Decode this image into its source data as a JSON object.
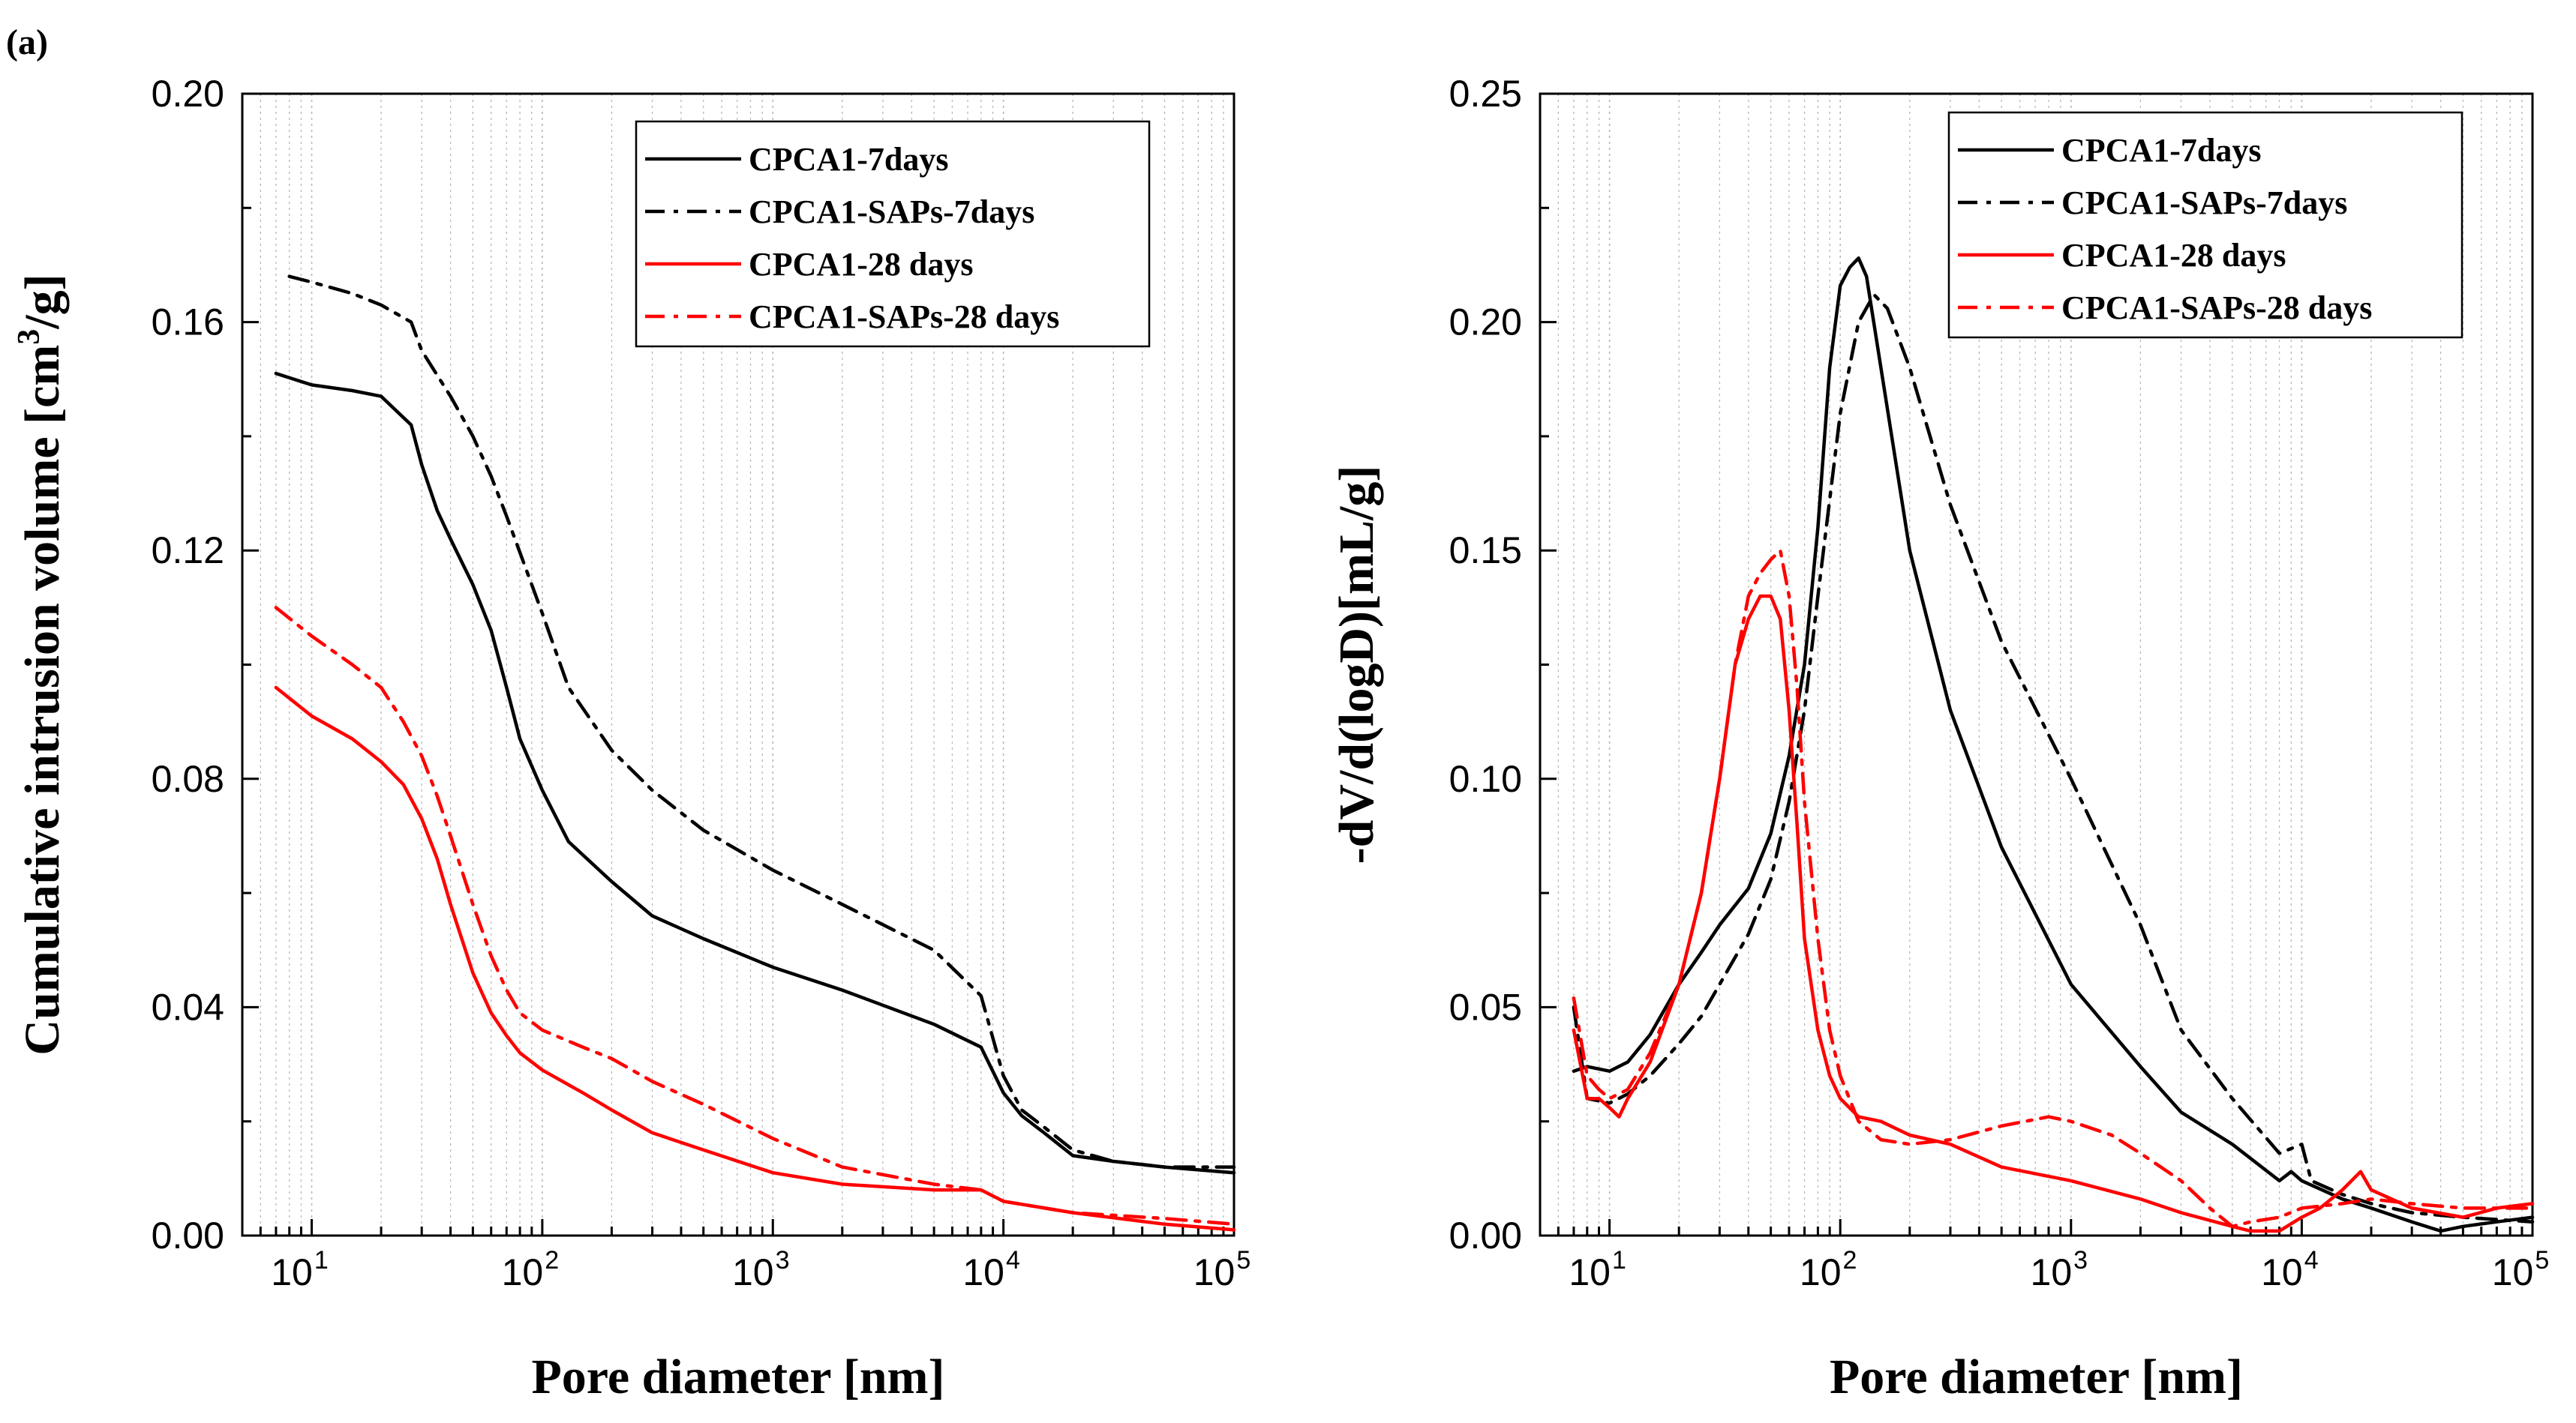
{
  "panel_label": "(a)",
  "chart_data": [
    {
      "type": "line",
      "xscale": "log",
      "xlim": [
        5,
        100000
      ],
      "ylim": [
        0,
        0.2
      ],
      "xticks": [
        10,
        100,
        1000,
        10000,
        100000
      ],
      "xtick_labels": [
        {
          "base": "10",
          "exp": "1"
        },
        {
          "base": "10",
          "exp": "2"
        },
        {
          "base": "10",
          "exp": "3"
        },
        {
          "base": "10",
          "exp": "4"
        },
        {
          "base": "10",
          "exp": "5"
        }
      ],
      "yticks": [
        0,
        0.04,
        0.08,
        0.12,
        0.16,
        0.2
      ],
      "ytick_labels": [
        "0.00",
        "0.04",
        "0.08",
        "0.12",
        "0.16",
        "0.20"
      ],
      "xlabel": "Pore diameter [nm]",
      "ylabel": "Cumulative intrusion volume [cm",
      "ylabel_sup": "3",
      "ylabel_end": "/g]",
      "grid": true,
      "legend_position": "top-right",
      "series": [
        {
          "name": "CPCA1-7days",
          "color": "#000000",
          "dash": "solid",
          "x": [
            7,
            10,
            15,
            20,
            27,
            30,
            35,
            40,
            50,
            60,
            70,
            80,
            100,
            130,
            200,
            300,
            500,
            1000,
            2000,
            5000,
            8000,
            10000,
            12000,
            15000,
            20000,
            30000,
            50000,
            100000
          ],
          "y": [
            0.151,
            0.149,
            0.148,
            0.147,
            0.142,
            0.135,
            0.127,
            0.122,
            0.114,
            0.106,
            0.096,
            0.087,
            0.078,
            0.069,
            0.062,
            0.056,
            0.052,
            0.047,
            0.043,
            0.037,
            0.033,
            0.025,
            0.021,
            0.018,
            0.014,
            0.013,
            0.012,
            0.011
          ]
        },
        {
          "name": "CPCA1-SAPs-7days",
          "color": "#000000",
          "dash": "dashdot",
          "x": [
            8,
            10,
            15,
            20,
            27,
            30,
            40,
            50,
            60,
            70,
            100,
            130,
            200,
            300,
            500,
            1000,
            2000,
            5000,
            8000,
            10000,
            12000,
            15000,
            20000,
            30000,
            50000,
            100000
          ],
          "y": [
            0.168,
            0.167,
            0.165,
            0.163,
            0.16,
            0.155,
            0.147,
            0.14,
            0.133,
            0.126,
            0.109,
            0.096,
            0.085,
            0.078,
            0.071,
            0.064,
            0.058,
            0.05,
            0.042,
            0.028,
            0.022,
            0.019,
            0.015,
            0.013,
            0.012,
            0.012
          ]
        },
        {
          "name": "CPCA1-28 days",
          "color": "#ff0000",
          "dash": "solid",
          "x": [
            7,
            10,
            15,
            20,
            25,
            30,
            35,
            40,
            50,
            60,
            70,
            80,
            100,
            150,
            200,
            300,
            500,
            1000,
            2000,
            5000,
            8000,
            10000,
            20000,
            50000,
            100000
          ],
          "y": [
            0.096,
            0.091,
            0.087,
            0.083,
            0.079,
            0.073,
            0.066,
            0.058,
            0.046,
            0.039,
            0.035,
            0.032,
            0.029,
            0.025,
            0.022,
            0.018,
            0.015,
            0.011,
            0.009,
            0.008,
            0.008,
            0.006,
            0.004,
            0.002,
            0.001
          ]
        },
        {
          "name": "CPCA1-SAPs-28 days",
          "color": "#ff0000",
          "dash": "dashdot",
          "x": [
            7,
            10,
            15,
            20,
            25,
            30,
            35,
            40,
            50,
            60,
            70,
            80,
            100,
            150,
            200,
            300,
            500,
            1000,
            2000,
            5000,
            8000,
            10000,
            20000,
            50000,
            100000
          ],
          "y": [
            0.11,
            0.105,
            0.1,
            0.096,
            0.09,
            0.084,
            0.077,
            0.07,
            0.058,
            0.049,
            0.043,
            0.039,
            0.036,
            0.033,
            0.031,
            0.027,
            0.023,
            0.017,
            0.012,
            0.009,
            0.008,
            0.006,
            0.004,
            0.003,
            0.002
          ]
        }
      ]
    },
    {
      "type": "line",
      "xscale": "log",
      "xlim": [
        5,
        100000
      ],
      "ylim": [
        0,
        0.25
      ],
      "xticks": [
        10,
        100,
        1000,
        10000,
        100000
      ],
      "xtick_labels": [
        {
          "base": "10",
          "exp": "1"
        },
        {
          "base": "10",
          "exp": "2"
        },
        {
          "base": "10",
          "exp": "3"
        },
        {
          "base": "10",
          "exp": "4"
        },
        {
          "base": "10",
          "exp": "5"
        }
      ],
      "yticks": [
        0,
        0.05,
        0.1,
        0.15,
        0.2,
        0.25
      ],
      "ytick_labels": [
        "0.00",
        "0.05",
        "0.10",
        "0.15",
        "0.20",
        "0.25"
      ],
      "xlabel": "Pore diameter [nm]",
      "ylabel": "-dV/d(logD)[mL/g]",
      "grid": true,
      "legend_position": "top-right",
      "series": [
        {
          "name": "CPCA1-7days",
          "color": "#000000",
          "dash": "solid",
          "x": [
            7,
            8,
            10,
            12,
            15,
            20,
            25,
            30,
            40,
            50,
            60,
            70,
            80,
            90,
            100,
            110,
            120,
            130,
            150,
            200,
            300,
            500,
            1000,
            2000,
            3000,
            5000,
            8000,
            9000,
            10000,
            15000,
            20000,
            30000,
            40000,
            50000,
            70000,
            100000
          ],
          "y": [
            0.036,
            0.037,
            0.036,
            0.038,
            0.044,
            0.055,
            0.062,
            0.068,
            0.076,
            0.088,
            0.105,
            0.125,
            0.155,
            0.19,
            0.208,
            0.212,
            0.214,
            0.21,
            0.19,
            0.15,
            0.115,
            0.085,
            0.055,
            0.037,
            0.027,
            0.02,
            0.012,
            0.014,
            0.012,
            0.008,
            0.006,
            0.003,
            0.001,
            0.002,
            0.003,
            0.004
          ]
        },
        {
          "name": "CPCA1-SAPs-7days",
          "color": "#000000",
          "dash": "dashdot",
          "x": [
            7,
            8,
            10,
            12,
            15,
            20,
            25,
            30,
            40,
            50,
            60,
            70,
            80,
            100,
            120,
            140,
            160,
            200,
            300,
            500,
            1000,
            2000,
            3000,
            5000,
            8000,
            10000,
            11000,
            15000,
            20000,
            30000,
            50000,
            100000
          ],
          "y": [
            0.05,
            0.03,
            0.029,
            0.031,
            0.035,
            0.042,
            0.048,
            0.055,
            0.066,
            0.078,
            0.095,
            0.115,
            0.14,
            0.18,
            0.2,
            0.206,
            0.203,
            0.19,
            0.16,
            0.13,
            0.1,
            0.068,
            0.045,
            0.03,
            0.018,
            0.02,
            0.012,
            0.009,
            0.007,
            0.005,
            0.004,
            0.003
          ]
        },
        {
          "name": "CPCA1-28 days",
          "color": "#ff0000",
          "dash": "solid",
          "x": [
            7,
            8,
            9,
            10,
            11,
            12,
            15,
            20,
            25,
            30,
            35,
            40,
            45,
            50,
            55,
            60,
            65,
            70,
            80,
            90,
            100,
            120,
            150,
            200,
            300,
            500,
            1000,
            2000,
            3000,
            5000,
            6000,
            8000,
            10000,
            12000,
            15000,
            18000,
            20000,
            30000,
            50000,
            70000,
            100000
          ],
          "y": [
            0.045,
            0.03,
            0.03,
            0.028,
            0.026,
            0.03,
            0.038,
            0.055,
            0.075,
            0.1,
            0.125,
            0.135,
            0.14,
            0.14,
            0.135,
            0.115,
            0.09,
            0.065,
            0.045,
            0.035,
            0.03,
            0.026,
            0.025,
            0.022,
            0.02,
            0.015,
            0.012,
            0.008,
            0.005,
            0.002,
            0.001,
            0.001,
            0.004,
            0.006,
            0.01,
            0.014,
            0.01,
            0.006,
            0.004,
            0.006,
            0.007
          ]
        },
        {
          "name": "CPCA1-SAPs-28 days",
          "color": "#ff0000",
          "dash": "dashdot",
          "x": [
            7,
            8,
            9,
            10,
            12,
            15,
            20,
            25,
            30,
            35,
            40,
            45,
            50,
            55,
            60,
            65,
            70,
            80,
            90,
            100,
            120,
            150,
            200,
            300,
            500,
            800,
            1000,
            1500,
            2000,
            3000,
            4000,
            5000,
            6000,
            8000,
            10000,
            15000,
            20000,
            30000,
            50000,
            100000
          ],
          "y": [
            0.052,
            0.035,
            0.032,
            0.03,
            0.032,
            0.04,
            0.055,
            0.075,
            0.1,
            0.125,
            0.14,
            0.145,
            0.148,
            0.15,
            0.14,
            0.12,
            0.095,
            0.065,
            0.045,
            0.035,
            0.025,
            0.021,
            0.02,
            0.021,
            0.024,
            0.026,
            0.025,
            0.022,
            0.018,
            0.012,
            0.006,
            0.002,
            0.003,
            0.004,
            0.006,
            0.007,
            0.008,
            0.007,
            0.006,
            0.006
          ]
        }
      ]
    }
  ]
}
